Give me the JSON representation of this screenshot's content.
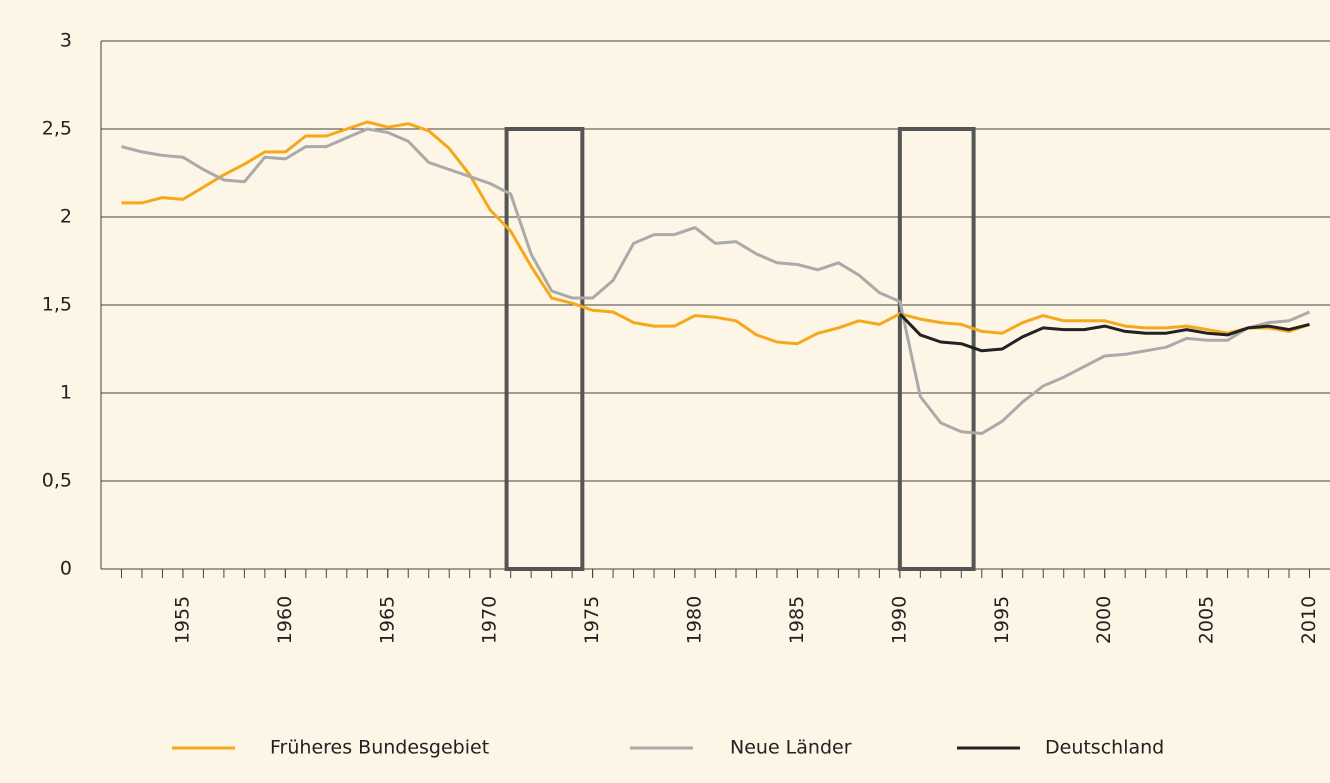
{
  "chart_data": {
    "type": "line",
    "x": [
      1952,
      1953,
      1954,
      1955,
      1956,
      1957,
      1958,
      1959,
      1960,
      1961,
      1962,
      1963,
      1964,
      1965,
      1966,
      1967,
      1968,
      1969,
      1970,
      1971,
      1972,
      1973,
      1974,
      1975,
      1976,
      1977,
      1978,
      1979,
      1980,
      1981,
      1982,
      1983,
      1984,
      1985,
      1986,
      1987,
      1988,
      1989,
      1990,
      1991,
      1992,
      1993,
      1994,
      1995,
      1996,
      1997,
      1998,
      1999,
      2000,
      2001,
      2002,
      2003,
      2004,
      2005,
      2006,
      2007,
      2008,
      2009,
      2010
    ],
    "series": [
      {
        "name": "Früheres Bundesgebiet",
        "color": "#f5a81c",
        "values": [
          2.08,
          2.08,
          2.11,
          2.1,
          2.17,
          2.24,
          2.3,
          2.37,
          2.37,
          2.46,
          2.46,
          2.5,
          2.54,
          2.51,
          2.53,
          2.49,
          2.39,
          2.24,
          2.04,
          1.92,
          1.72,
          1.54,
          1.51,
          1.47,
          1.46,
          1.4,
          1.38,
          1.38,
          1.44,
          1.43,
          1.41,
          1.33,
          1.29,
          1.28,
          1.34,
          1.37,
          1.41,
          1.39,
          1.45,
          1.42,
          1.4,
          1.39,
          1.35,
          1.34,
          1.4,
          1.44,
          1.41,
          1.41,
          1.41,
          1.38,
          1.37,
          1.37,
          1.38,
          1.36,
          1.34,
          1.37,
          1.37,
          1.35,
          1.39
        ]
      },
      {
        "name": "Neue Länder",
        "color": "#aaaaaa",
        "values": [
          2.4,
          2.37,
          2.35,
          2.34,
          2.27,
          2.21,
          2.2,
          2.34,
          2.33,
          2.4,
          2.4,
          2.45,
          2.5,
          2.48,
          2.43,
          2.31,
          2.27,
          2.23,
          2.19,
          2.13,
          1.79,
          1.58,
          1.54,
          1.54,
          1.64,
          1.85,
          1.9,
          1.9,
          1.94,
          1.85,
          1.86,
          1.79,
          1.74,
          1.73,
          1.7,
          1.74,
          1.67,
          1.57,
          1.52,
          0.98,
          0.83,
          0.78,
          0.77,
          0.84,
          0.95,
          1.04,
          1.09,
          1.15,
          1.21,
          1.22,
          1.24,
          1.26,
          1.31,
          1.3,
          1.3,
          1.37,
          1.4,
          1.41,
          1.46
        ]
      },
      {
        "name": "Deutschland",
        "color": "#222222",
        "values": [
          null,
          null,
          null,
          null,
          null,
          null,
          null,
          null,
          null,
          null,
          null,
          null,
          null,
          null,
          null,
          null,
          null,
          null,
          null,
          null,
          null,
          null,
          null,
          null,
          null,
          null,
          null,
          null,
          null,
          null,
          null,
          null,
          null,
          null,
          null,
          null,
          null,
          null,
          1.45,
          1.33,
          1.29,
          1.28,
          1.24,
          1.25,
          1.32,
          1.37,
          1.36,
          1.36,
          1.38,
          1.35,
          1.34,
          1.34,
          1.36,
          1.34,
          1.33,
          1.37,
          1.38,
          1.36,
          1.39
        ]
      }
    ],
    "xlim": [
      1951,
      2011
    ],
    "xticks": [
      1955,
      1960,
      1965,
      1970,
      1975,
      1980,
      1985,
      1990,
      1995,
      2000,
      2005,
      2010
    ],
    "minor_tick_step": 1,
    "ylim": [
      0,
      3
    ],
    "yticks": [
      0,
      {
        "value": 0.5,
        "label": "0,5"
      },
      1,
      {
        "value": 1.5,
        "label": "1,5"
      },
      2,
      {
        "value": 2.5,
        "label": "2,5"
      },
      3
    ],
    "grid": true,
    "legend": "bottom",
    "highlights": [
      {
        "x0": 1970.8,
        "x1": 1974.5,
        "y0": 0,
        "y1": 2.5
      },
      {
        "x0": 1990,
        "x1": 1993.6,
        "y0": 0,
        "y1": 2.5
      }
    ]
  }
}
